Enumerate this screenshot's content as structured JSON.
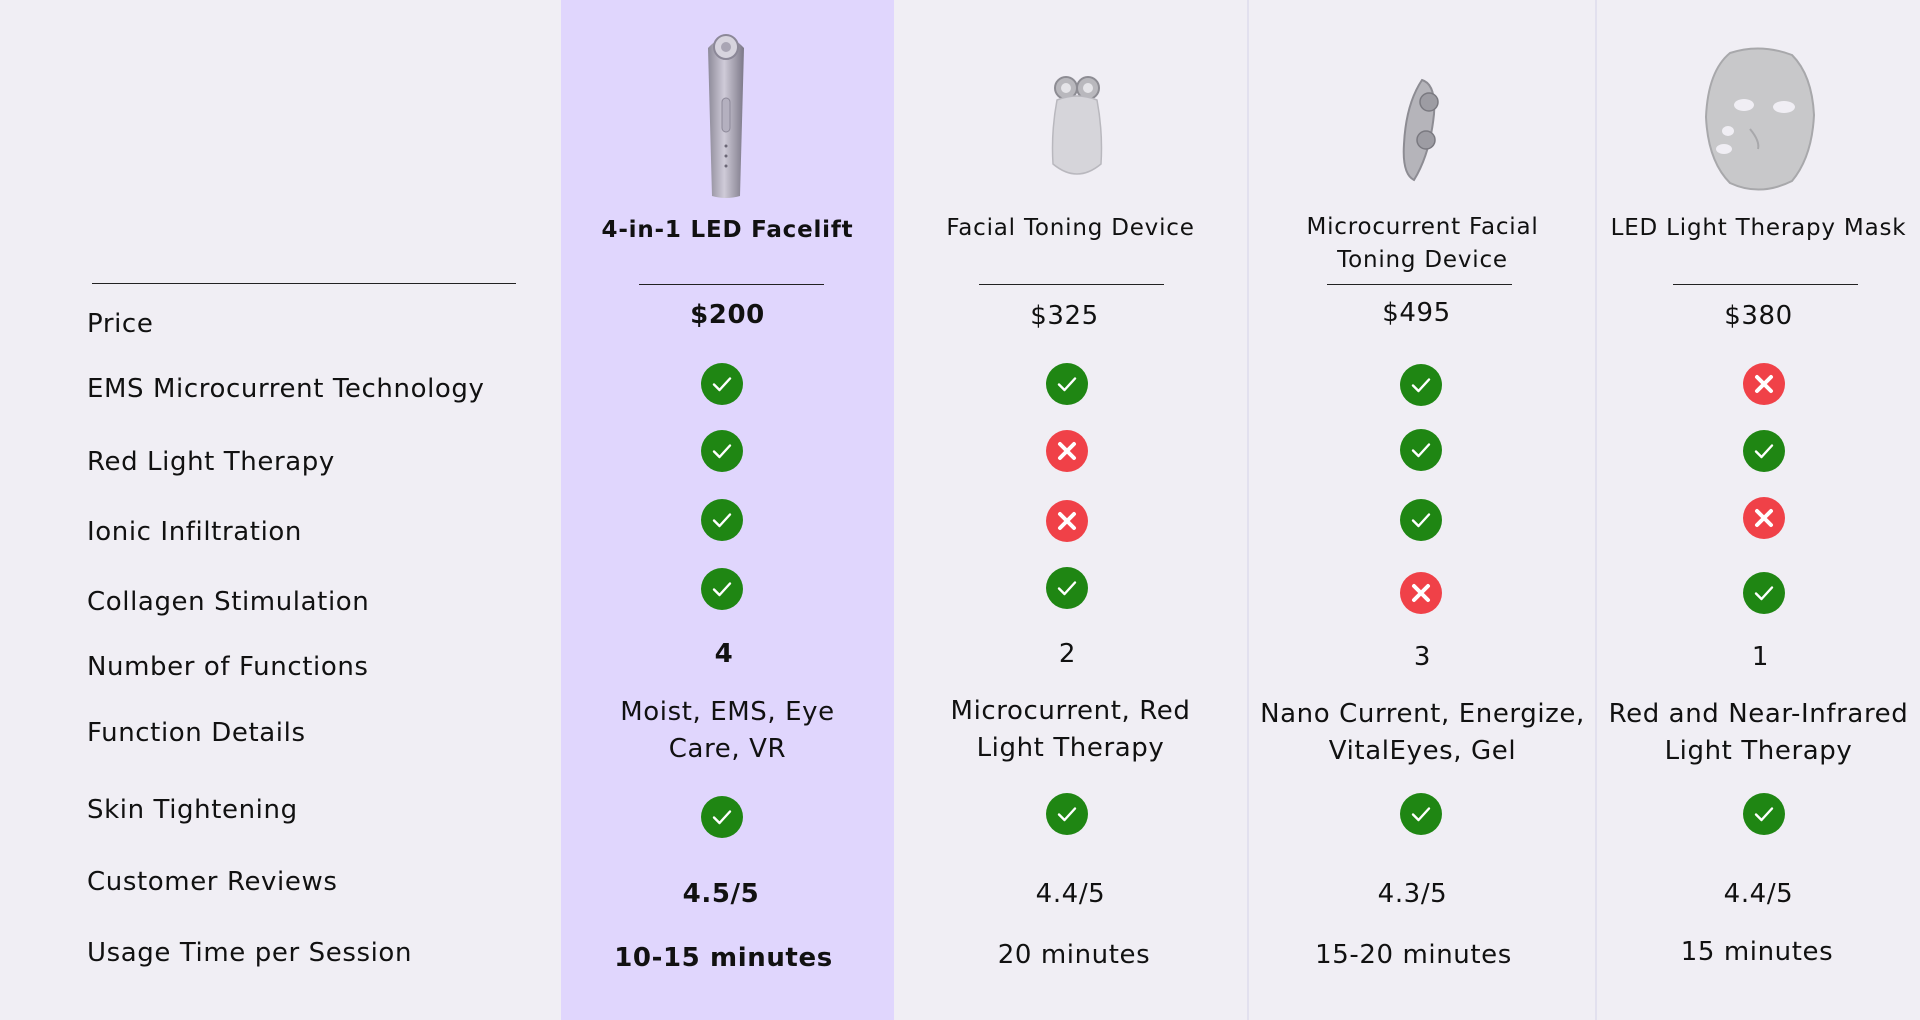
{
  "colors": {
    "background": "#f0eef4",
    "featured_column": "#e0d6fd",
    "check": "#1f8613",
    "cross": "#f04148"
  },
  "features": [
    "Price",
    "EMS Microcurrent Technology",
    "Red Light Therapy",
    "Ionic Infiltration",
    "Collagen Stimulation",
    "Number of Functions",
    "Function Details",
    "Skin Tightening",
    "Customer Reviews",
    "Usage Time per Session"
  ],
  "products": [
    {
      "name": "4-in-1 LED Facelift",
      "image": "led-facelift-wand-image",
      "price": "$200",
      "ems_microcurrent": "check-icon",
      "red_light": "check-icon",
      "ionic_infiltration": "check-icon",
      "collagen_stimulation": "check-icon",
      "num_functions": "4",
      "function_details_line1": "Moist, EMS, Eye",
      "function_details_line2": "Care, VR",
      "skin_tightening": "check-icon",
      "reviews": "4.5/5",
      "usage_time": "10-15 minutes"
    },
    {
      "name": "Facial Toning Device",
      "image": "toning-device-image",
      "price": "$325",
      "ems_microcurrent": "check-icon",
      "red_light": "cross-icon",
      "ionic_infiltration": "cross-icon",
      "collagen_stimulation": "check-icon",
      "num_functions": "2",
      "function_details_line1": "Microcurrent, Red",
      "function_details_line2": "Light Therapy",
      "skin_tightening": "check-icon",
      "reviews": "4.4/5",
      "usage_time": "20 minutes"
    },
    {
      "name_line1": "Microcurrent Facial",
      "name_line2": "Toning Device",
      "image": "microcurrent-device-image",
      "price": "$495",
      "ems_microcurrent": "check-icon",
      "red_light": "check-icon",
      "ionic_infiltration": "check-icon",
      "collagen_stimulation": "cross-icon",
      "num_functions": "3",
      "function_details_line1": "Nano Current, Energize,",
      "function_details_line2": "VitalEyes, Gel",
      "skin_tightening": "check-icon",
      "reviews": "4.3/5",
      "usage_time": "15-20 minutes"
    },
    {
      "name": "LED Light Therapy Mask",
      "image": "led-mask-image",
      "price": "$380",
      "ems_microcurrent": "cross-icon",
      "red_light": "check-icon",
      "ionic_infiltration": "cross-icon",
      "collagen_stimulation": "check-icon",
      "num_functions": "1",
      "function_details_line1": "Red and Near-Infrared",
      "function_details_line2": "Light Therapy",
      "skin_tightening": "check-icon",
      "reviews": "4.4/5",
      "usage_time": "15 minutes"
    }
  ]
}
